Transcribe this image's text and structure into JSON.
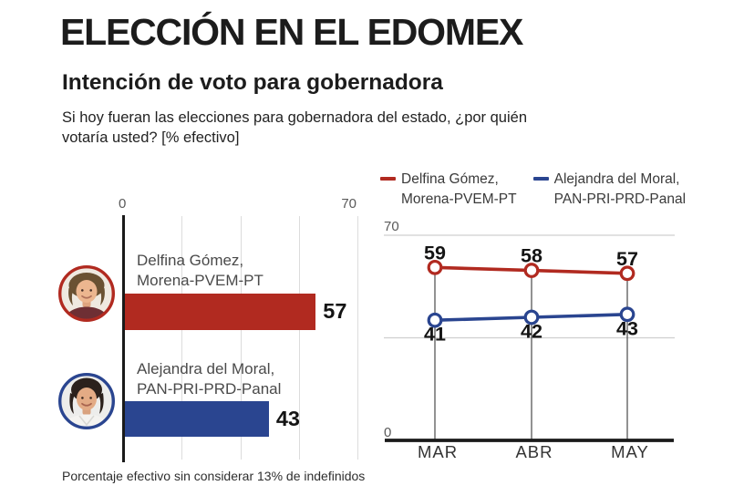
{
  "header": {
    "title": "ELECCIÓN EN EL EDOMEX",
    "subtitle": "Intención de voto para gobernadora",
    "question_line1": "Si hoy fueran las elecciones para gobernadora del estado, ¿por quién",
    "question_line2": "votaría usted? [% efectivo]"
  },
  "legend": {
    "items": [
      {
        "name": "Delfina Gómez,",
        "party": "Morena-PVEM-PT",
        "color": "#B12A20"
      },
      {
        "name": "Alejandra del Moral,",
        "party": "PAN-PRI-PRD-Panal",
        "color": "#2A4590"
      }
    ]
  },
  "footer": {
    "note": "Porcentaje efectivo sin considerar 13% de indefinidos"
  },
  "colors": {
    "red": "#B12A20",
    "blue": "#2A4590",
    "grid_light": "#DCDCDC",
    "axis_black": "#1A1A1A",
    "label_gray": "#4A4A4A",
    "tick_gray": "#5A5A5A"
  },
  "avatars": [
    {
      "person": "Delfina Gómez",
      "ring_color": "#B12A20"
    },
    {
      "person": "Alejandra del Moral",
      "ring_color": "#2A4590"
    }
  ],
  "chart_data": [
    {
      "id": "intencion-voto-bar",
      "type": "bar",
      "orientation": "horizontal",
      "xlim": [
        0,
        70
      ],
      "x_ticks": [
        0,
        70
      ],
      "grid_divisions": 4,
      "grid": true,
      "bars": [
        {
          "label_line1": "Delfina Gómez,",
          "label_line2": "Morena-PVEM-PT",
          "value": 57,
          "color": "#B12A20"
        },
        {
          "label_line1": "Alejandra del Moral,",
          "label_line2": "PAN-PRI-PRD-Panal",
          "value": 43,
          "color": "#2A4590"
        }
      ]
    },
    {
      "id": "tendencia-mensual-line",
      "type": "line",
      "categories": [
        "MAR",
        "ABR",
        "MAY"
      ],
      "ylim": [
        0,
        70
      ],
      "y_ticks": [
        70,
        0
      ],
      "gridline_values": [
        70,
        35
      ],
      "legend_position": "top",
      "series": [
        {
          "name": "Delfina Gómez, Morena-PVEM-PT",
          "color": "#B12A20",
          "values": [
            59,
            58,
            57
          ]
        },
        {
          "name": "Alejandra del Moral, PAN-PRI-PRD-Panal",
          "color": "#2A4590",
          "values": [
            41,
            42,
            43
          ]
        }
      ]
    }
  ]
}
